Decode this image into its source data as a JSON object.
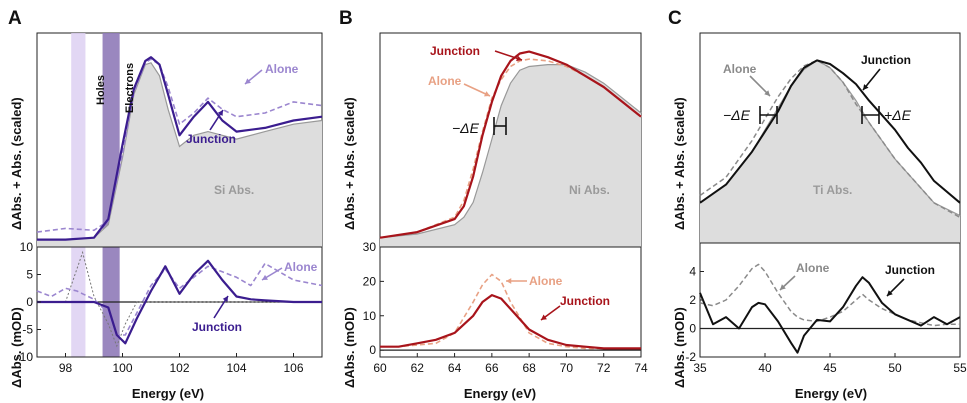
{
  "panels": [
    {
      "letter": "A",
      "xlabel": "Energy (eV)",
      "top_ylabel": "ΔAbs. + Abs. (scaled)",
      "bottom_ylabel": "ΔAbs. (mOD)",
      "abs_label": "Si Abs.",
      "shade_labels": [
        "Holes",
        "Electrons"
      ],
      "annotations": {
        "alone": "Alone",
        "junction": "Junction",
        "alone_bottom": "Alone",
        "junction_bottom": "Junction"
      }
    },
    {
      "letter": "B",
      "xlabel": "Energy (eV)",
      "top_ylabel": "ΔAbs. + Abs. (scaled)",
      "bottom_ylabel": "ΔAbs. (mOD)",
      "abs_label": "Ni Abs.",
      "annotations": {
        "junction": "Junction",
        "alone": "Alone",
        "shift": "−ΔE",
        "alone_bottom": "Alone",
        "junction_bottom": "Junction"
      }
    },
    {
      "letter": "C",
      "xlabel": "Energy (eV)",
      "top_ylabel": "ΔAbs. + Abs. (scaled)",
      "bottom_ylabel": "ΔAbs. (mOD)",
      "abs_label": "Ti Abs.",
      "annotations": {
        "alone": "Alone",
        "junction": "Junction",
        "shift_left": "−ΔE",
        "shift_right": "+ΔE",
        "alone_bottom": "Alone",
        "junction_bottom": "Junction"
      }
    }
  ],
  "colors": {
    "a_junction": "#3b1d8f",
    "a_alone": "#9b86cf",
    "holes_band": "#ddd0f2",
    "electrons_band": "#8f7ab8",
    "b_junction": "#a8141b",
    "b_alone": "#e8a184",
    "c_junction": "#111111",
    "c_alone": "#8a8a8a",
    "absorption_fill": "#dddddd",
    "absorption_line": "#999999"
  },
  "chart_data": [
    {
      "type": "line",
      "panel": "A-top",
      "x": [
        97,
        98,
        99,
        99.5,
        100,
        100.4,
        100.8,
        101.0,
        101.3,
        101.6,
        102.0,
        102.5,
        103.0,
        103.5,
        104.0,
        105.0,
        106.0,
        107.0
      ],
      "xlim": [
        97,
        107
      ],
      "ylim": [
        0,
        1.15
      ],
      "series": [
        {
          "name": "Junction",
          "values": [
            0.04,
            0.04,
            0.05,
            0.15,
            0.55,
            0.85,
            1.0,
            1.02,
            0.98,
            0.82,
            0.6,
            0.7,
            0.78,
            0.68,
            0.62,
            0.64,
            0.68,
            0.7
          ]
        },
        {
          "name": "Alone",
          "values": [
            0.08,
            0.1,
            0.09,
            0.14,
            0.5,
            0.83,
            0.99,
            1.01,
            0.98,
            0.86,
            0.66,
            0.72,
            0.8,
            0.74,
            0.7,
            0.72,
            0.78,
            0.76
          ]
        },
        {
          "name": "Si Abs.",
          "values": [
            0.04,
            0.04,
            0.05,
            0.12,
            0.48,
            0.82,
            0.98,
            0.99,
            0.92,
            0.74,
            0.54,
            0.6,
            0.62,
            0.6,
            0.58,
            0.62,
            0.66,
            0.68
          ]
        }
      ],
      "shaded": [
        {
          "label": "Holes",
          "from": 98.2,
          "to": 98.7
        },
        {
          "label": "Electrons",
          "from": 99.3,
          "to": 99.9
        }
      ]
    },
    {
      "type": "line",
      "panel": "A-bottom",
      "x": [
        97,
        97.5,
        98,
        98.4,
        98.6,
        99,
        99.5,
        99.8,
        100.1,
        100.5,
        101,
        101.5,
        102,
        102.5,
        103,
        103.5,
        104,
        104.5,
        105,
        106,
        107
      ],
      "xlim": [
        97,
        107
      ],
      "ylim": [
        -10,
        10
      ],
      "xticks": [
        98,
        100,
        102,
        104,
        106
      ],
      "yticks": [
        -10,
        -5,
        0,
        5,
        10
      ],
      "series": [
        {
          "name": "Junction",
          "values": [
            0,
            0,
            0,
            0,
            0,
            0,
            -1,
            -6,
            -7.5,
            -3,
            2,
            6.5,
            1.5,
            5,
            7.5,
            4,
            1,
            0.5,
            0.3,
            0,
            0
          ]
        },
        {
          "name": "Alone",
          "values": [
            2.0,
            1.0,
            2.5,
            2.0,
            1.5,
            0.5,
            -2,
            -6,
            -6,
            -2,
            3,
            6,
            2.5,
            4.5,
            6.5,
            5.5,
            4.5,
            3,
            7,
            4,
            3
          ]
        },
        {
          "name": "Holes/Electrons model",
          "values": [
            0,
            0,
            0,
            6,
            9,
            1,
            -4,
            -8,
            -4,
            0,
            0,
            0,
            0,
            0,
            0,
            0,
            0,
            0,
            0,
            0,
            0
          ]
        }
      ]
    },
    {
      "type": "line",
      "panel": "B-top",
      "x": [
        60,
        62,
        64,
        64.5,
        65,
        65.5,
        66,
        66.5,
        67,
        67.5,
        68,
        69,
        70,
        71,
        72,
        73,
        74
      ],
      "xlim": [
        60,
        74
      ],
      "ylim": [
        0,
        1.15
      ],
      "series": [
        {
          "name": "Junction",
          "values": [
            0.05,
            0.08,
            0.15,
            0.22,
            0.38,
            0.6,
            0.78,
            0.92,
            1.0,
            1.04,
            1.05,
            1.02,
            0.98,
            0.92,
            0.86,
            0.78,
            0.7
          ]
        },
        {
          "name": "Alone",
          "values": [
            0.05,
            0.08,
            0.16,
            0.25,
            0.42,
            0.62,
            0.8,
            0.9,
            0.97,
            1.0,
            1.01,
            1.0,
            0.97,
            0.92,
            0.86,
            0.78,
            0.7
          ]
        },
        {
          "name": "Ni Abs.",
          "values": [
            0.05,
            0.07,
            0.12,
            0.16,
            0.24,
            0.4,
            0.58,
            0.76,
            0.88,
            0.95,
            0.97,
            0.98,
            0.98,
            0.94,
            0.88,
            0.8,
            0.72
          ]
        }
      ]
    },
    {
      "type": "line",
      "panel": "B-bottom",
      "x": [
        60,
        61,
        62,
        63,
        64,
        65,
        65.5,
        66,
        66.5,
        67,
        68,
        69,
        70,
        71,
        72,
        73,
        74
      ],
      "xlim": [
        60,
        74
      ],
      "ylim": [
        -2,
        30
      ],
      "xticks": [
        60,
        62,
        64,
        66,
        68,
        70,
        72,
        74
      ],
      "yticks": [
        0,
        10,
        20,
        30
      ],
      "series": [
        {
          "name": "Junction",
          "values": [
            1,
            1,
            2,
            3,
            5,
            10,
            14,
            16,
            15,
            12,
            6,
            3,
            1.5,
            1,
            0.5,
            0.5,
            0.5
          ]
        },
        {
          "name": "Alone",
          "values": [
            1,
            1,
            1.5,
            2,
            5,
            14,
            19,
            22,
            20,
            14,
            5,
            2,
            1,
            0.5,
            0.5,
            0.5,
            0.5
          ]
        }
      ]
    },
    {
      "type": "line",
      "panel": "C-top",
      "x": [
        35,
        37,
        39,
        41,
        42,
        43,
        44,
        45,
        46,
        47,
        48,
        49,
        50,
        51,
        52,
        53,
        55
      ],
      "xlim": [
        35,
        55
      ],
      "ylim": [
        0,
        1.15
      ],
      "series": [
        {
          "name": "Junction",
          "values": [
            0.22,
            0.32,
            0.5,
            0.72,
            0.86,
            0.96,
            1.0,
            0.98,
            0.93,
            0.87,
            0.78,
            0.7,
            0.62,
            0.52,
            0.44,
            0.34,
            0.22
          ]
        },
        {
          "name": "Alone",
          "values": [
            0.26,
            0.36,
            0.56,
            0.8,
            0.9,
            0.97,
            1.0,
            0.96,
            0.88,
            0.76,
            0.66,
            0.56,
            0.46,
            0.38,
            0.3,
            0.22,
            0.14
          ]
        },
        {
          "name": "Ti Abs.",
          "values": [
            0.22,
            0.32,
            0.5,
            0.74,
            0.86,
            0.95,
            1.0,
            0.96,
            0.88,
            0.78,
            0.66,
            0.56,
            0.46,
            0.38,
            0.3,
            0.22,
            0.15
          ]
        }
      ]
    },
    {
      "type": "line",
      "panel": "C-bottom",
      "x": [
        35,
        36,
        37,
        38,
        39,
        39.5,
        40,
        41,
        42,
        42.5,
        43,
        44,
        45,
        46,
        47,
        47.5,
        48,
        49,
        50,
        51,
        52,
        53,
        54,
        55
      ],
      "xlim": [
        35,
        55
      ],
      "ylim": [
        -2,
        6
      ],
      "xticks": [
        35,
        40,
        45,
        50,
        55
      ],
      "yticks": [
        -2,
        0,
        2,
        4
      ],
      "series": [
        {
          "name": "Junction",
          "values": [
            2.5,
            0.3,
            0.8,
            0,
            1.5,
            1.8,
            1.7,
            0.5,
            -1.0,
            -1.7,
            -0.5,
            0.6,
            0.5,
            1.5,
            3.0,
            3.6,
            3.2,
            1.8,
            1.0,
            0.6,
            0.2,
            0.8,
            0.3,
            0.8
          ]
        },
        {
          "name": "Alone",
          "values": [
            1.8,
            1.6,
            2.0,
            3.0,
            4.2,
            4.5,
            4.0,
            2.5,
            1.2,
            0.8,
            0.6,
            0.5,
            0.8,
            1.2,
            2.0,
            2.4,
            2.0,
            1.4,
            1.0,
            0.6,
            0.4,
            0.2,
            0.3,
            0.3
          ]
        }
      ]
    }
  ]
}
